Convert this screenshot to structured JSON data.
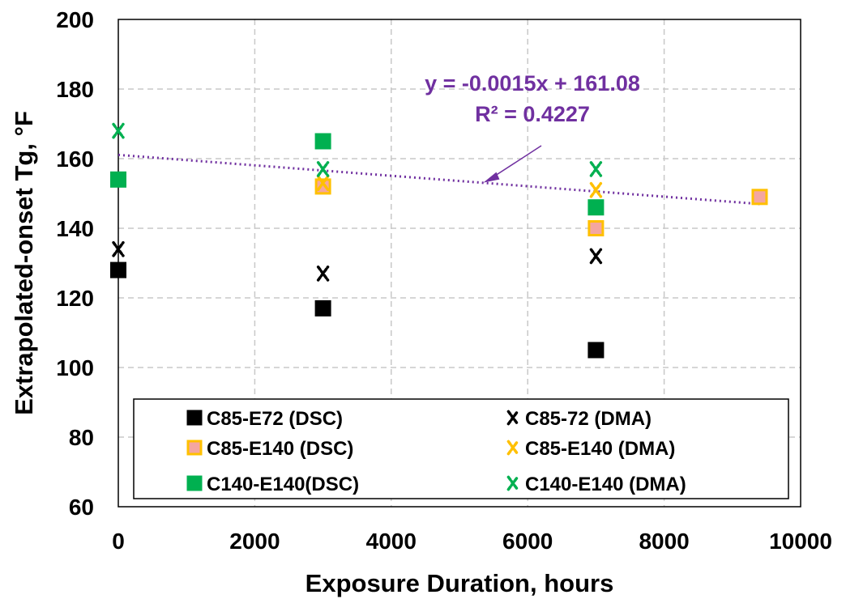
{
  "chart_data": {
    "type": "scatter",
    "xlabel": "Exposure Duration, hours",
    "ylabel": "Extrapolated-onset Tg, °F",
    "xlim": [
      0,
      10000
    ],
    "ylim": [
      60,
      200
    ],
    "xticks": [
      "0",
      "2000",
      "4000",
      "6000",
      "8000",
      "10000"
    ],
    "yticks": [
      "60",
      "80",
      "100",
      "120",
      "140",
      "160",
      "180",
      "200"
    ],
    "grid": true,
    "legend_position": "bottom",
    "series": [
      {
        "name": "C85-E72 (DSC)",
        "marker": "square",
        "color": "#000000",
        "edge": "#000000",
        "points": [
          [
            0,
            128
          ],
          [
            3000,
            117
          ],
          [
            7000,
            105
          ]
        ]
      },
      {
        "name": "C85-72 (DMA)",
        "marker": "cross",
        "color": "#000000",
        "points": [
          [
            0,
            134
          ],
          [
            3000,
            127
          ],
          [
            7000,
            132
          ]
        ]
      },
      {
        "name": "C85-E140 (DSC)",
        "marker": "square",
        "color": "#f4a6a0",
        "edge": "#ffc000",
        "points": [
          [
            3000,
            152
          ],
          [
            7000,
            140
          ],
          [
            9400,
            149
          ]
        ]
      },
      {
        "name": "C85-E140 (DMA)",
        "marker": "cross",
        "color": "#ffc000",
        "points": [
          [
            3000,
            153
          ],
          [
            7000,
            151
          ]
        ]
      },
      {
        "name": "C140-E140(DSC)",
        "marker": "square",
        "color": "#00b050",
        "edge": "#00b050",
        "points": [
          [
            0,
            154
          ],
          [
            3000,
            165
          ],
          [
            7000,
            146
          ]
        ]
      },
      {
        "name": "C140-E140 (DMA)",
        "marker": "cross",
        "color": "#00b050",
        "points": [
          [
            0,
            168
          ],
          [
            3000,
            157
          ],
          [
            7000,
            157
          ]
        ]
      }
    ],
    "trendline": {
      "equation": "y = -0.0015x + 161.08",
      "r2": "R² = 0.4227",
      "slope": -0.0015,
      "intercept": 161.08,
      "x_range": [
        0,
        9400
      ],
      "color": "#7030a0",
      "arrow_to": [
        5350,
        153.1
      ]
    }
  }
}
